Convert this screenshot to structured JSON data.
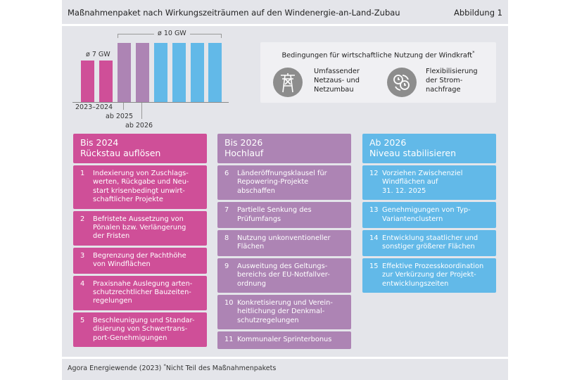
{
  "header": {
    "title": "Maßnahmenpaket nach Wirkungszeiträumen auf den Windenergie-an-Land-Zubau",
    "figure": "Abbildung 1"
  },
  "colors": {
    "pink": "#cf4f98",
    "purple": "#ad84b4",
    "blue": "#62b9e8",
    "background": "#e4e5ea"
  },
  "bars": {
    "values": [
      7,
      7,
      10,
      10,
      10,
      10,
      10,
      10
    ],
    "colors": [
      "pink",
      "pink",
      "purple",
      "purple",
      "blue",
      "blue",
      "blue",
      "blue"
    ],
    "label_low": "ø 7 GW",
    "label_high": "ø 10 GW",
    "x_labels": [
      "2023–2024",
      "ab 2025",
      "ab 2026"
    ]
  },
  "conditions": {
    "title": "Bedingungen für wirtschaftliche Nutzung der Windkraft",
    "footnote_mark": "*",
    "items": [
      {
        "icon": "power-pylon-icon",
        "text": "Umfassender\nNetzaus- und\nNetzumbau"
      },
      {
        "icon": "clocks-cycle-icon",
        "text": "Flexibilisierung\nder Strom-\nnachfrage"
      }
    ]
  },
  "columns": [
    {
      "color": "pink",
      "title": "Bis 2024",
      "subtitle": "Rückstau auflösen",
      "items": [
        {
          "num": "1",
          "text": "Indexierung von Zuschlags-\nwerten, Rückgabe und Neu-\nstart krisenbedingt unwirt-\nschaftlicher Projekte"
        },
        {
          "num": "2",
          "text": "Befristete Aussetzung von\nPönalen bzw. Verlängerung\nder Fristen"
        },
        {
          "num": "3",
          "text": "Begrenzung der Pachthöhe\nvon Windflächen"
        },
        {
          "num": "4",
          "text": "Praxisnahe Auslegung arten-\nschutzrechtlicher Bauzeiten-\nregelungen"
        },
        {
          "num": "5",
          "text": "Beschleunigung und Standar-\ndisierung von Schwertrans-\nport-Genehmigungen"
        }
      ]
    },
    {
      "color": "purple",
      "title": "Bis 2026",
      "subtitle": "Hochlauf",
      "items": [
        {
          "num": "6",
          "text": "Länderöffnungsklausel für\nRepowering-Projekte\nabschaffen"
        },
        {
          "num": "7",
          "text": "Partielle Senkung des\nPrüfumfangs"
        },
        {
          "num": "8",
          "text": "Nutzung unkonventioneller\nFlächen"
        },
        {
          "num": "9",
          "text": "Ausweitung des Geltungs-\nbereichs der EU-Notfallver-\nordnung"
        },
        {
          "num": "10",
          "text": "Konkretisierung und Verein-\nheitlichung der Denkmal-\nschutzregelungen"
        },
        {
          "num": "11",
          "text": "Kommunaler Sprinterbonus"
        }
      ]
    },
    {
      "color": "blue",
      "title": "Ab 2026",
      "subtitle": "Niveau stabilisieren",
      "items": [
        {
          "num": "12",
          "text": "Vorziehen Zwischenziel\nWindflächen auf\n31. 12. 2025"
        },
        {
          "num": "13",
          "text": "Genehmigungen von Typ-\nVariantenclustern"
        },
        {
          "num": "14",
          "text": "Entwicklung staatlicher und\nsonstiger größerer Flächen"
        },
        {
          "num": "15",
          "text": "Effektive Prozesskoordination\nzur Verkürzung der Projekt-\nentwicklungszeiten"
        }
      ]
    }
  ],
  "footer": {
    "source": "Agora Energiewende (2023)",
    "note_mark": "*",
    "note": "Nicht Teil des Maßnahmenpakets"
  }
}
